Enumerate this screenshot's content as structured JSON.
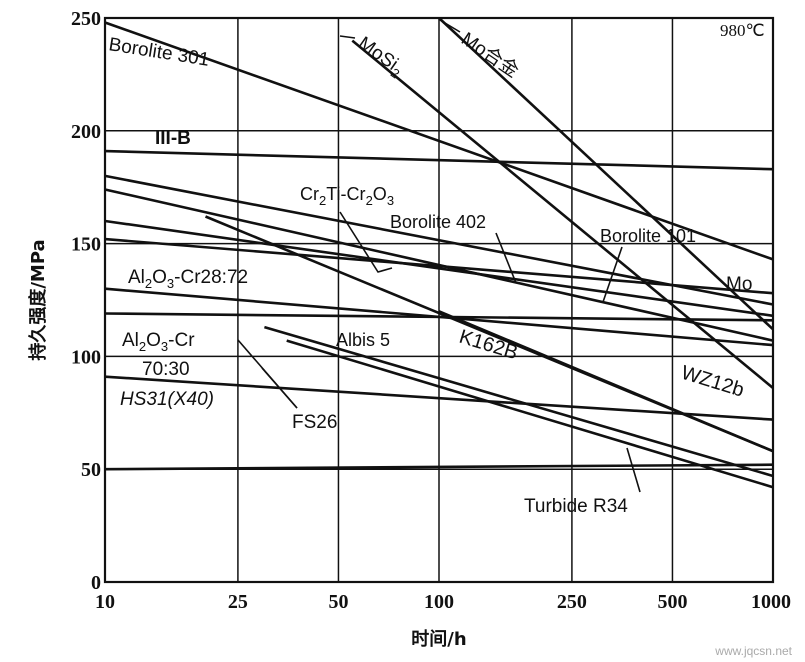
{
  "chart_data": {
    "type": "line",
    "title": "",
    "xlabel": "时间/h",
    "ylabel": "持久强度/MPa",
    "x_scale": "log",
    "xlim": [
      10,
      1000
    ],
    "ylim": [
      0,
      250
    ],
    "x_ticks": [
      10,
      25,
      50,
      100,
      250,
      500,
      1000
    ],
    "y_ticks": [
      0,
      50,
      100,
      150,
      200,
      250
    ],
    "grid": true,
    "annotations": {
      "temperature": "980℃"
    },
    "series": [
      {
        "name": "Borolite 301",
        "x": [
          10,
          1000
        ],
        "y": [
          248,
          143
        ]
      },
      {
        "name": "MoSi2",
        "name_main": "MoSi",
        "name_sub": "2",
        "x": [
          55,
          1000
        ],
        "y": [
          240,
          86
        ]
      },
      {
        "name": "Mo合金",
        "x": [
          100,
          1000
        ],
        "y": [
          250,
          112
        ]
      },
      {
        "name": "III-B",
        "x": [
          10,
          1000
        ],
        "y": [
          191,
          183
        ]
      },
      {
        "name": "Cr2Ti-Cr2O3",
        "x": [
          10,
          1000
        ],
        "y": [
          174,
          107
        ]
      },
      {
        "name": "Borolite 402",
        "x": [
          10,
          1000
        ],
        "y": [
          180,
          123
        ]
      },
      {
        "name": "Borolite 101",
        "x": [
          10,
          1000
        ],
        "y": [
          160,
          118
        ]
      },
      {
        "name": "Mo",
        "x": [
          10,
          1000
        ],
        "y": [
          152,
          128
        ]
      },
      {
        "name": "Al2O3-Cr28:72",
        "x": [
          10,
          1000
        ],
        "y": [
          130,
          105
        ]
      },
      {
        "name": "K162B",
        "x": [
          20,
          1000
        ],
        "y": [
          162,
          58
        ]
      },
      {
        "name": "Albis 5",
        "x": [
          10,
          1000
        ],
        "y": [
          119,
          116
        ]
      },
      {
        "name": "WZ12b",
        "x": [
          100,
          1000
        ],
        "y": [
          120,
          58
        ]
      },
      {
        "name": "Al2O3-Cr 70:30",
        "x": [
          30,
          1000
        ],
        "y": [
          113,
          47
        ]
      },
      {
        "name": "FS26",
        "x": [
          35,
          1000
        ],
        "y": [
          107,
          42
        ]
      },
      {
        "name": "HS31(X40)",
        "x": [
          10,
          1000
        ],
        "y": [
          91,
          72
        ]
      },
      {
        "name": "Turbide R34",
        "x": [
          10,
          1000
        ],
        "y": [
          50,
          52
        ]
      }
    ],
    "labels": {
      "borolite301": "Borolite 301",
      "mosi_main": "MoSi",
      "mosi_sub": "2",
      "mo_alloy": "Mo合金",
      "iiib": "III-B",
      "cr2ti": {
        "a": "Cr",
        "a_sub": "2",
        "b": "Ti-Cr",
        "b_sub": "2",
        "c": "O",
        "c_sub": "3"
      },
      "borolite402": "Borolite 402",
      "borolite101": "Borolite 101",
      "mo": "Mo",
      "al2o3_2872": {
        "a": "Al",
        "a_sub": "2",
        "b": "O",
        "b_sub": "3",
        "c": "-Cr28:72"
      },
      "albis5": "Albis 5",
      "k162b": "K162B",
      "wz12b": "WZ12b",
      "al2o3_7030": {
        "a": "Al",
        "a_sub": "2",
        "b": "O",
        "b_sub": "3",
        "c": "-Cr",
        "line2": "70:30"
      },
      "hs31": "HS31(X40)",
      "fs26": "FS26",
      "turbide": "Turbide R34"
    }
  },
  "watermark": "www.jqcsn.net"
}
